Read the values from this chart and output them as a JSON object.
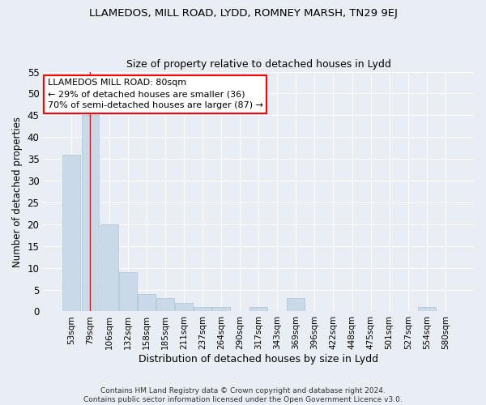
{
  "title": "LLAMEDOS, MILL ROAD, LYDD, ROMNEY MARSH, TN29 9EJ",
  "subtitle": "Size of property relative to detached houses in Lydd",
  "xlabel": "Distribution of detached houses by size in Lydd",
  "ylabel": "Number of detached properties",
  "bar_color": "#c9d9e8",
  "bar_edgecolor": "#a8c4d8",
  "categories": [
    "53sqm",
    "79sqm",
    "106sqm",
    "132sqm",
    "158sqm",
    "185sqm",
    "211sqm",
    "237sqm",
    "264sqm",
    "290sqm",
    "317sqm",
    "343sqm",
    "369sqm",
    "396sqm",
    "422sqm",
    "448sqm",
    "475sqm",
    "501sqm",
    "527sqm",
    "554sqm",
    "580sqm"
  ],
  "values": [
    36,
    45,
    20,
    9,
    4,
    3,
    2,
    1,
    1,
    0,
    1,
    0,
    3,
    0,
    0,
    0,
    0,
    0,
    0,
    1,
    0
  ],
  "ylim": [
    0,
    55
  ],
  "yticks": [
    0,
    5,
    10,
    15,
    20,
    25,
    30,
    35,
    40,
    45,
    50,
    55
  ],
  "property_label": "LLAMEDOS MILL ROAD: 80sqm",
  "annotation_line1": "← 29% of detached houses are smaller (36)",
  "annotation_line2": "70% of semi-detached houses are larger (87) →",
  "vline_x_index": 1,
  "footer_line1": "Contains HM Land Registry data © Crown copyright and database right 2024.",
  "footer_line2": "Contains public sector information licensed under the Open Government Licence v3.0.",
  "background_color": "#e8eef4",
  "plot_background": "#e8eef4",
  "grid_color": "#ffffff"
}
